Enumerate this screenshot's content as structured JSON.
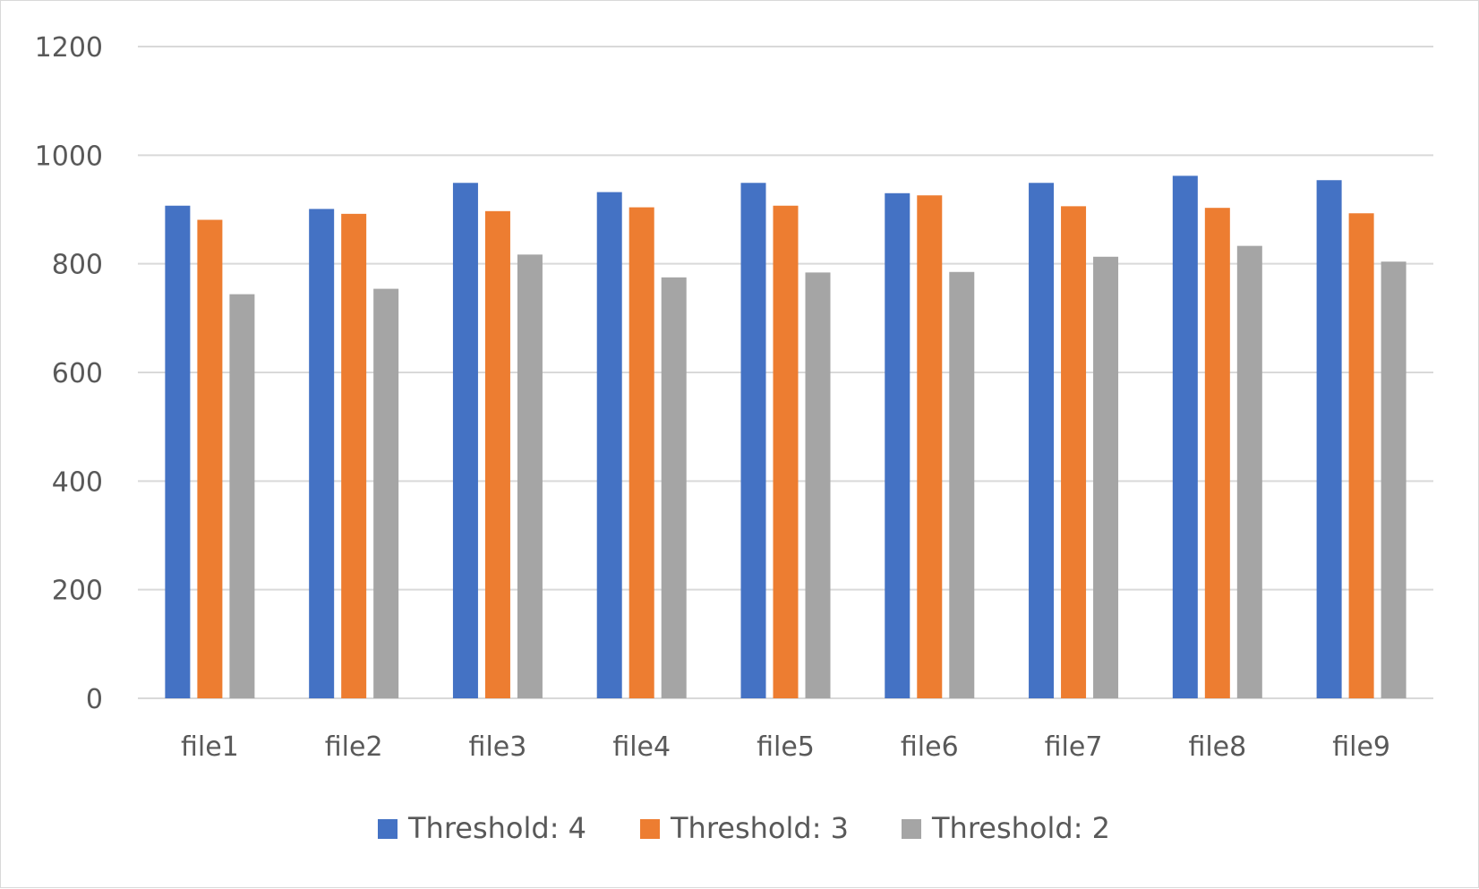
{
  "chart_data": {
    "type": "bar",
    "title": "",
    "xlabel": "",
    "ylabel": "",
    "categories": [
      "file1",
      "file2",
      "file3",
      "file4",
      "file5",
      "file6",
      "file7",
      "file8",
      "file9"
    ],
    "series": [
      {
        "name": "Threshold: 4",
        "color": "#4472C4",
        "values": [
          907,
          901,
          949,
          932,
          949,
          930,
          949,
          962,
          954
        ]
      },
      {
        "name": "Threshold: 3",
        "color": "#ED7D31",
        "values": [
          881,
          892,
          897,
          904,
          907,
          926,
          906,
          903,
          893
        ]
      },
      {
        "name": "Threshold: 2",
        "color": "#A5A5A5",
        "values": [
          744,
          754,
          817,
          775,
          784,
          785,
          813,
          833,
          804
        ]
      }
    ],
    "ylim": [
      0,
      1200
    ],
    "yticks": [
      0,
      200,
      400,
      600,
      800,
      1000,
      1200
    ],
    "grid": true,
    "legend_position": "bottom"
  }
}
